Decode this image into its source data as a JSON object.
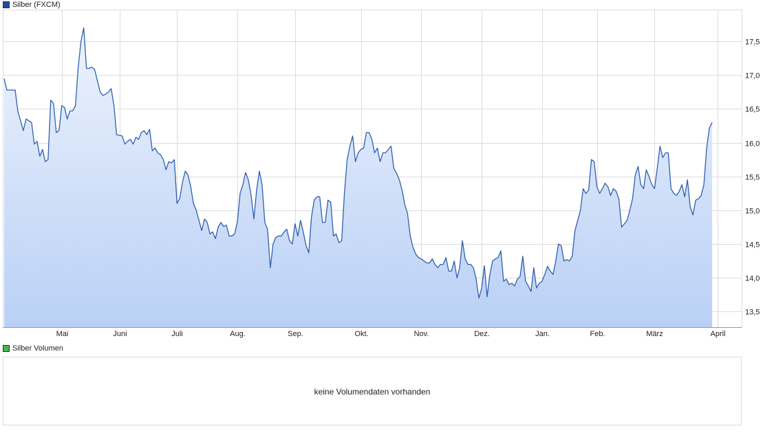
{
  "legend": {
    "price_label": "Silber (FXCM)",
    "volume_label": "Silber Volumen"
  },
  "volume": {
    "message": "keine Volumendaten vorhanden"
  },
  "colors": {
    "line": "#2e5fae",
    "fill_top": "#eef3fd",
    "fill_bottom": "#b9d0f5",
    "price_swatch": "#1f4ea0",
    "volume_swatch": "#49b449",
    "grid": "#dcdcdc"
  },
  "chart_data": {
    "type": "area",
    "title": "Silber (FXCM)",
    "xlabel": "",
    "ylabel": "",
    "ylim": [
      13.27,
      17.97
    ],
    "y_ticks": [
      13.5,
      14.0,
      14.5,
      15.0,
      15.5,
      16.0,
      16.5,
      17.0,
      17.5
    ],
    "y_tick_labels": [
      "13,5",
      "14,0",
      "14,5",
      "15,0",
      "15,5",
      "16,0",
      "16,5",
      "17,0",
      "17,5"
    ],
    "grid": true,
    "x_months": [
      "Mai",
      "Juni",
      "Juli",
      "Aug.",
      "Sep.",
      "Okt.",
      "Nov.",
      "Dez.",
      "Jan.",
      "Feb.",
      "März",
      "April"
    ],
    "x_month_positions": [
      21,
      42,
      63,
      85,
      106,
      130,
      152,
      174,
      196,
      216,
      237,
      260
    ],
    "n_days": 269,
    "series": [
      {
        "name": "Silber (FXCM)",
        "points": [
          [
            0,
            16.95
          ],
          [
            1,
            16.78
          ],
          [
            4,
            16.78
          ],
          [
            5,
            16.47
          ],
          [
            7,
            16.18
          ],
          [
            8,
            16.35
          ],
          [
            10,
            16.3
          ],
          [
            11,
            15.98
          ],
          [
            12,
            16.02
          ],
          [
            13,
            15.8
          ],
          [
            14,
            15.9
          ],
          [
            15,
            15.72
          ],
          [
            16,
            15.75
          ],
          [
            17,
            16.63
          ],
          [
            18,
            16.58
          ],
          [
            19,
            16.15
          ],
          [
            20,
            16.18
          ],
          [
            21,
            16.55
          ],
          [
            22,
            16.52
          ],
          [
            23,
            16.35
          ],
          [
            24,
            16.47
          ],
          [
            25,
            16.47
          ],
          [
            26,
            16.55
          ],
          [
            27,
            17.12
          ],
          [
            28,
            17.5
          ],
          [
            29,
            17.7
          ],
          [
            30,
            17.1
          ],
          [
            31,
            17.1
          ],
          [
            32,
            17.12
          ],
          [
            33,
            17.08
          ],
          [
            35,
            16.75
          ],
          [
            36,
            16.7
          ],
          [
            37,
            16.72
          ],
          [
            38,
            16.75
          ],
          [
            39,
            16.8
          ],
          [
            40,
            16.55
          ],
          [
            41,
            16.12
          ],
          [
            43,
            16.1
          ],
          [
            44,
            15.98
          ],
          [
            45,
            16.02
          ],
          [
            46,
            16.05
          ],
          [
            47,
            15.98
          ],
          [
            48,
            16.08
          ],
          [
            49,
            16.05
          ],
          [
            50,
            16.15
          ],
          [
            51,
            16.18
          ],
          [
            52,
            16.12
          ],
          [
            53,
            16.2
          ],
          [
            54,
            15.88
          ],
          [
            55,
            15.92
          ],
          [
            56,
            15.85
          ],
          [
            57,
            15.82
          ],
          [
            58,
            15.75
          ],
          [
            59,
            15.6
          ],
          [
            60,
            15.72
          ],
          [
            61,
            15.7
          ],
          [
            62,
            15.75
          ],
          [
            63,
            15.1
          ],
          [
            64,
            15.18
          ],
          [
            65,
            15.42
          ],
          [
            66,
            15.58
          ],
          [
            67,
            15.52
          ],
          [
            68,
            15.35
          ],
          [
            69,
            15.1
          ],
          [
            70,
            15.0
          ],
          [
            71,
            14.85
          ],
          [
            72,
            14.7
          ],
          [
            73,
            14.87
          ],
          [
            74,
            14.82
          ],
          [
            75,
            14.65
          ],
          [
            76,
            14.68
          ],
          [
            77,
            14.58
          ],
          [
            78,
            14.75
          ],
          [
            79,
            14.82
          ],
          [
            80,
            14.76
          ],
          [
            81,
            14.78
          ],
          [
            82,
            14.62
          ],
          [
            83,
            14.62
          ],
          [
            84,
            14.65
          ],
          [
            85,
            14.83
          ],
          [
            86,
            15.25
          ],
          [
            87,
            15.38
          ],
          [
            88,
            15.56
          ],
          [
            89,
            15.45
          ],
          [
            90,
            15.22
          ],
          [
            91,
            14.87
          ],
          [
            92,
            15.3
          ],
          [
            93,
            15.58
          ],
          [
            94,
            15.38
          ],
          [
            95,
            14.82
          ],
          [
            96,
            14.72
          ],
          [
            97,
            14.15
          ],
          [
            98,
            14.5
          ],
          [
            99,
            14.6
          ],
          [
            100,
            14.62
          ],
          [
            101,
            14.62
          ],
          [
            102,
            14.68
          ],
          [
            103,
            14.72
          ],
          [
            104,
            14.55
          ],
          [
            105,
            14.5
          ],
          [
            106,
            14.8
          ],
          [
            107,
            14.62
          ],
          [
            108,
            14.85
          ],
          [
            109,
            14.68
          ],
          [
            110,
            14.48
          ],
          [
            111,
            14.37
          ],
          [
            112,
            14.9
          ],
          [
            113,
            15.15
          ],
          [
            114,
            15.2
          ],
          [
            115,
            15.2
          ],
          [
            116,
            14.82
          ],
          [
            117,
            14.82
          ],
          [
            118,
            15.15
          ],
          [
            119,
            15.12
          ],
          [
            120,
            14.62
          ],
          [
            121,
            14.65
          ],
          [
            122,
            14.52
          ],
          [
            123,
            14.55
          ],
          [
            124,
            15.25
          ],
          [
            125,
            15.75
          ],
          [
            126,
            15.95
          ],
          [
            127,
            16.1
          ],
          [
            128,
            15.72
          ],
          [
            129,
            15.85
          ],
          [
            130,
            15.9
          ],
          [
            131,
            15.92
          ],
          [
            132,
            16.15
          ],
          [
            133,
            16.15
          ],
          [
            134,
            16.05
          ],
          [
            135,
            15.85
          ],
          [
            136,
            15.92
          ],
          [
            137,
            15.72
          ],
          [
            138,
            15.85
          ],
          [
            139,
            15.85
          ],
          [
            140,
            15.9
          ],
          [
            141,
            15.95
          ],
          [
            142,
            15.62
          ],
          [
            143,
            15.55
          ],
          [
            144,
            15.45
          ],
          [
            145,
            15.3
          ],
          [
            146,
            15.08
          ],
          [
            147,
            14.95
          ],
          [
            148,
            14.62
          ],
          [
            149,
            14.45
          ],
          [
            150,
            14.35
          ],
          [
            151,
            14.3
          ],
          [
            152,
            14.28
          ],
          [
            153,
            14.25
          ],
          [
            154,
            14.22
          ],
          [
            155,
            14.22
          ],
          [
            156,
            14.28
          ],
          [
            157,
            14.2
          ],
          [
            158,
            14.15
          ],
          [
            159,
            14.2
          ],
          [
            160,
            14.2
          ],
          [
            161,
            14.3
          ],
          [
            162,
            14.1
          ],
          [
            163,
            14.1
          ],
          [
            164,
            14.25
          ],
          [
            165,
            14.0
          ],
          [
            166,
            14.15
          ],
          [
            167,
            14.55
          ],
          [
            168,
            14.28
          ],
          [
            169,
            14.2
          ],
          [
            170,
            14.2
          ],
          [
            171,
            14.15
          ],
          [
            172,
            13.98
          ],
          [
            173,
            13.7
          ],
          [
            174,
            13.85
          ],
          [
            175,
            14.18
          ],
          [
            176,
            13.72
          ],
          [
            177,
            14.05
          ],
          [
            178,
            14.25
          ],
          [
            179,
            14.28
          ],
          [
            180,
            14.3
          ],
          [
            181,
            14.4
          ],
          [
            182,
            13.95
          ],
          [
            183,
            13.98
          ],
          [
            184,
            13.9
          ],
          [
            185,
            13.92
          ],
          [
            186,
            13.88
          ],
          [
            187,
            13.98
          ],
          [
            188,
            14.02
          ],
          [
            189,
            14.32
          ],
          [
            190,
            13.95
          ],
          [
            191,
            13.88
          ],
          [
            192,
            13.8
          ],
          [
            193,
            14.15
          ],
          [
            194,
            13.85
          ],
          [
            195,
            13.92
          ],
          [
            196,
            13.95
          ],
          [
            197,
            14.05
          ],
          [
            198,
            14.17
          ],
          [
            199,
            14.1
          ],
          [
            200,
            14.05
          ],
          [
            201,
            14.25
          ],
          [
            202,
            14.5
          ],
          [
            203,
            14.48
          ],
          [
            204,
            14.25
          ],
          [
            205,
            14.27
          ],
          [
            206,
            14.25
          ],
          [
            207,
            14.32
          ],
          [
            208,
            14.7
          ],
          [
            209,
            14.85
          ],
          [
            210,
            15.0
          ],
          [
            211,
            15.32
          ],
          [
            212,
            15.25
          ],
          [
            213,
            15.3
          ],
          [
            214,
            15.75
          ],
          [
            215,
            15.72
          ],
          [
            216,
            15.35
          ],
          [
            217,
            15.25
          ],
          [
            218,
            15.32
          ],
          [
            219,
            15.4
          ],
          [
            220,
            15.35
          ],
          [
            221,
            15.22
          ],
          [
            222,
            15.32
          ],
          [
            223,
            15.28
          ],
          [
            224,
            15.17
          ],
          [
            225,
            14.75
          ],
          [
            226,
            14.8
          ],
          [
            227,
            14.85
          ],
          [
            228,
            15.0
          ],
          [
            229,
            15.17
          ],
          [
            230,
            15.52
          ],
          [
            231,
            15.65
          ],
          [
            232,
            15.38
          ],
          [
            233,
            15.32
          ],
          [
            234,
            15.6
          ],
          [
            235,
            15.5
          ],
          [
            236,
            15.38
          ],
          [
            237,
            15.32
          ],
          [
            238,
            15.62
          ],
          [
            239,
            15.95
          ],
          [
            240,
            15.78
          ],
          [
            241,
            15.85
          ],
          [
            242,
            15.85
          ],
          [
            243,
            15.32
          ],
          [
            244,
            15.25
          ],
          [
            245,
            15.22
          ],
          [
            246,
            15.28
          ],
          [
            247,
            15.38
          ],
          [
            248,
            15.2
          ],
          [
            249,
            15.45
          ],
          [
            250,
            15.05
          ],
          [
            251,
            14.93
          ],
          [
            252,
            15.15
          ],
          [
            253,
            15.17
          ],
          [
            254,
            15.22
          ],
          [
            255,
            15.38
          ],
          [
            256,
            15.92
          ],
          [
            257,
            16.22
          ],
          [
            258,
            16.3
          ]
        ]
      }
    ]
  }
}
